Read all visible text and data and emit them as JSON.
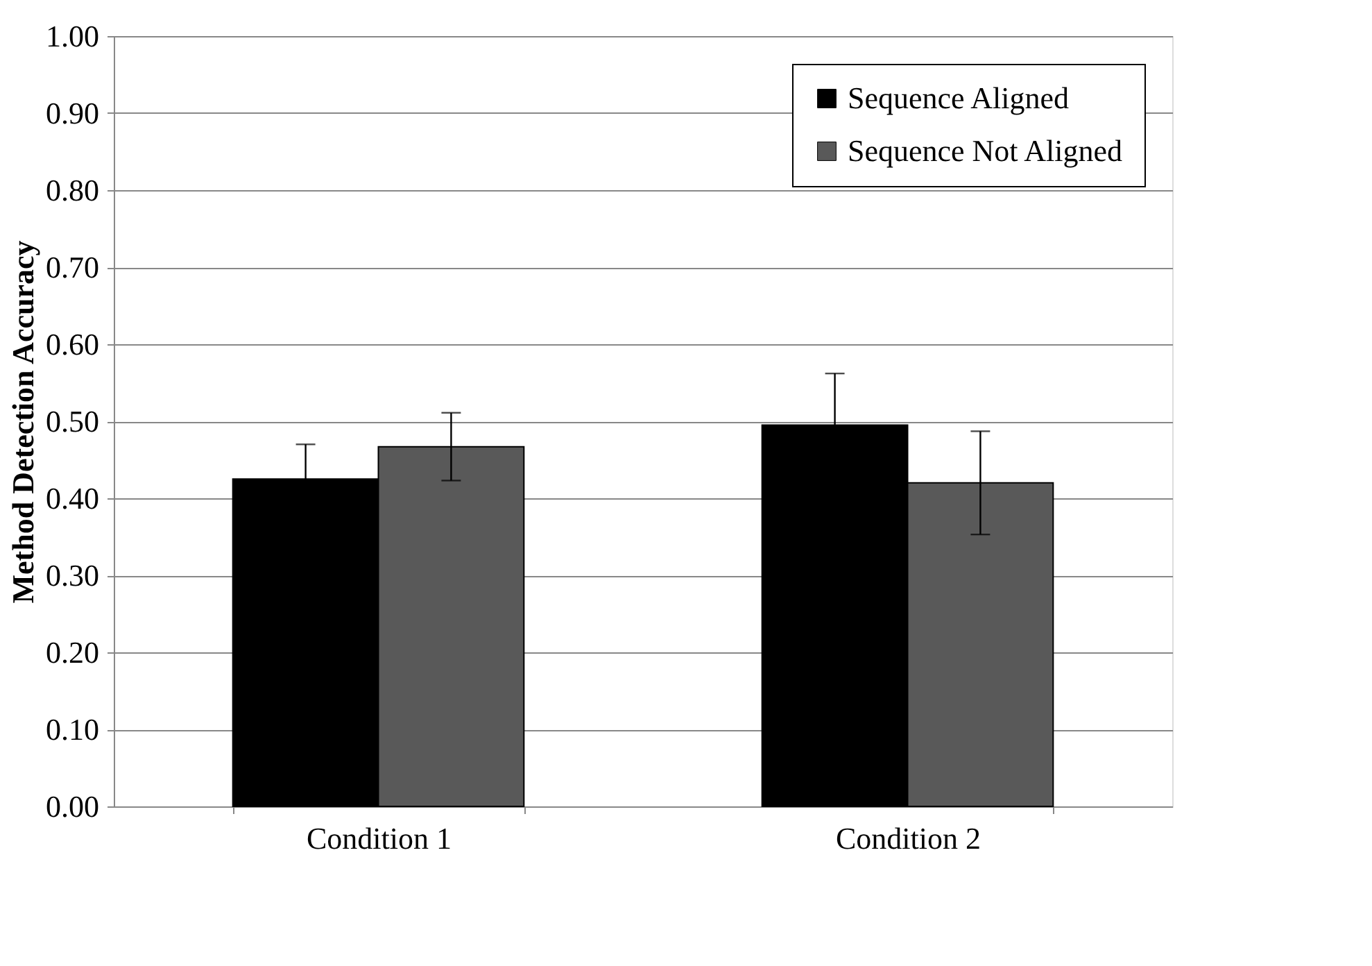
{
  "chart_data": {
    "type": "bar",
    "ylabel": "Method Detection Accuracy",
    "categories": [
      "Condition 1",
      "Condition 2"
    ],
    "series": [
      {
        "name": "Sequence Aligned",
        "color": "#000000",
        "values": [
          0.425,
          0.495
        ],
        "errors": [
          0.045,
          0.067
        ]
      },
      {
        "name": "Sequence Not Aligned",
        "color": "#595959",
        "values": [
          0.467,
          0.42
        ],
        "errors": [
          0.044,
          0.067
        ]
      }
    ],
    "ylim": [
      0,
      1
    ],
    "yticks": [
      {
        "value": 0,
        "label": "0.00"
      },
      {
        "value": 0.1,
        "label": "0.10"
      },
      {
        "value": 0.2,
        "label": "0.20"
      },
      {
        "value": 0.3,
        "label": "0.30"
      },
      {
        "value": 0.4,
        "label": "0.40"
      },
      {
        "value": 0.5,
        "label": "0.50"
      },
      {
        "value": 0.6,
        "label": "0.60"
      },
      {
        "value": 0.7,
        "label": "0.70"
      },
      {
        "value": 0.8,
        "label": "0.80"
      },
      {
        "value": 0.9,
        "label": "0.90"
      },
      {
        "value": 1,
        "label": "1.00"
      }
    ],
    "grid": "y",
    "legend": "top right"
  }
}
